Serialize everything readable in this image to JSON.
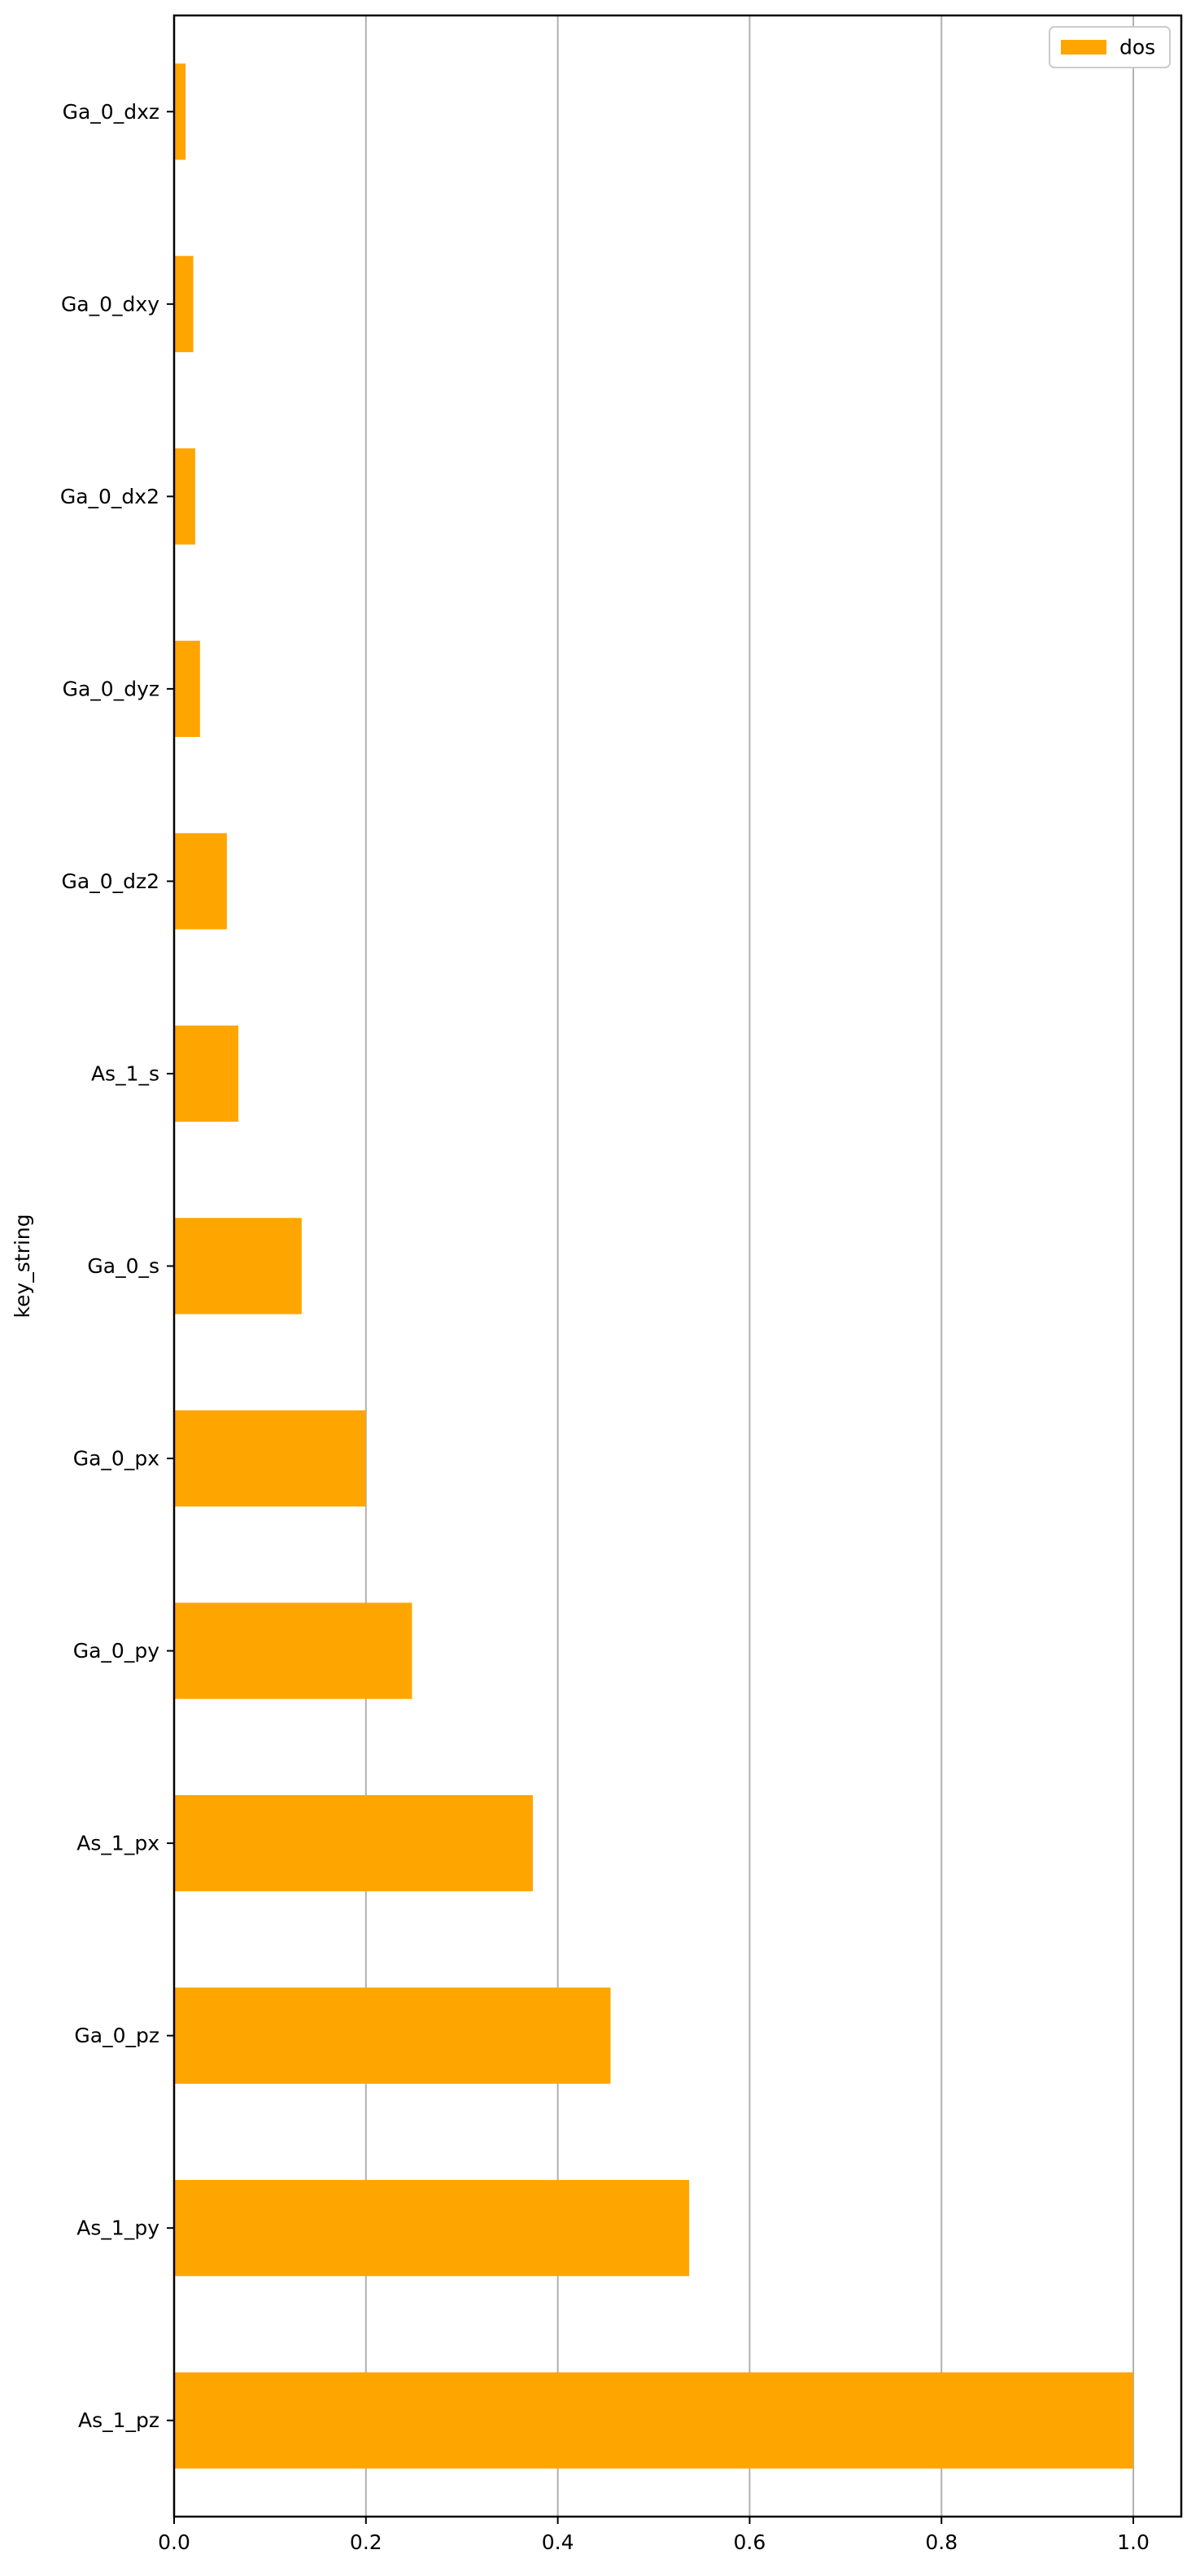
{
  "chart_data": {
    "type": "bar",
    "orientation": "horizontal",
    "title": "",
    "ylabel": "key_string",
    "xlabel": "",
    "categories": [
      "As_1_pz",
      "As_1_py",
      "Ga_0_pz",
      "As_1_px",
      "Ga_0_py",
      "Ga_0_px",
      "Ga_0_s",
      "As_1_s",
      "Ga_0_dz2",
      "Ga_0_dyz",
      "Ga_0_dx2",
      "Ga_0_dxy",
      "Ga_0_dxz"
    ],
    "series": [
      {
        "name": "dos",
        "color": "#ffa500",
        "values": [
          1.0,
          0.537,
          0.455,
          0.374,
          0.248,
          0.2,
          0.133,
          0.067,
          0.055,
          0.027,
          0.022,
          0.02,
          0.012
        ]
      }
    ],
    "xlim": [
      0.0,
      1.05
    ],
    "xticks": [
      "0.0",
      "0.2",
      "0.4",
      "0.6",
      "0.8",
      "1.0"
    ],
    "xtick_values": [
      0.0,
      0.2,
      0.4,
      0.6,
      0.8,
      1.0
    ],
    "grid": "x",
    "legend": {
      "placement": "top-right",
      "entries": [
        "dos"
      ]
    }
  }
}
